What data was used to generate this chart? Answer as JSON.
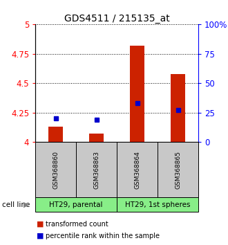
{
  "title": "GDS4511 / 215135_at",
  "samples": [
    "GSM368860",
    "GSM368863",
    "GSM368864",
    "GSM368865"
  ],
  "red_values": [
    4.13,
    4.07,
    4.82,
    4.58
  ],
  "blue_values_pct": [
    20,
    19,
    33,
    27
  ],
  "ylim_left": [
    4.0,
    5.0
  ],
  "ylim_right": [
    0,
    100
  ],
  "left_ticks": [
    4.0,
    4.25,
    4.5,
    4.75,
    5.0
  ],
  "right_ticks": [
    0,
    25,
    50,
    75,
    100
  ],
  "right_tick_labels": [
    "0",
    "25",
    "50",
    "75",
    "100%"
  ],
  "cell_lines": [
    "HT29, parental",
    "HT29, 1st spheres"
  ],
  "cell_line_spans": [
    [
      0,
      2
    ],
    [
      2,
      4
    ]
  ],
  "bar_color": "#cc2200",
  "dot_color": "#0000cc",
  "gray_box_color": "#c8c8c8",
  "green_box_color": "#88ee88",
  "bar_width": 0.35,
  "baseline": 4.0,
  "background_color": "#ffffff",
  "n_samples": 4
}
